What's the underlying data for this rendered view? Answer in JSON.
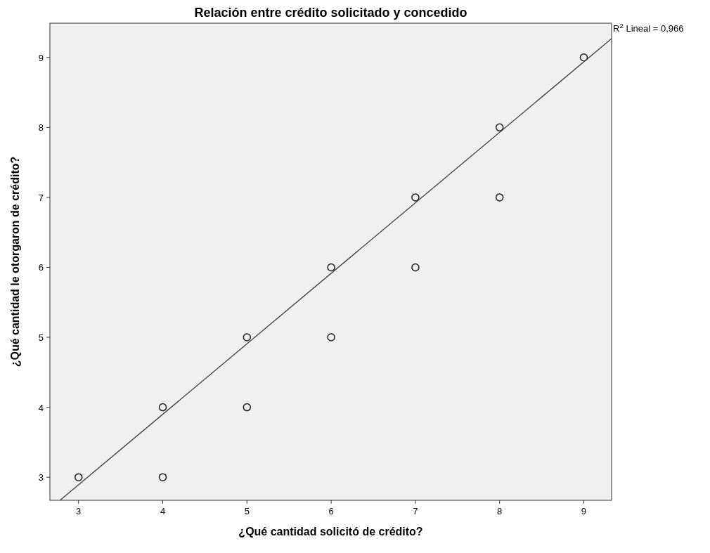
{
  "chart_data": {
    "type": "scatter",
    "title": "Relación entre crédito solicitado y concedido",
    "xlabel": "¿Qué cantidad solicitó de crédito?",
    "ylabel": "¿Qué cantidad le otorgaron de crédito?",
    "series": [
      {
        "color": "#1a1a1a",
        "marker": "circle",
        "x": [
          3,
          4,
          4,
          5,
          5,
          6,
          6,
          7,
          7,
          8,
          8,
          9
        ],
        "values": [
          3,
          4,
          3,
          5,
          4,
          6,
          5,
          7,
          6,
          8,
          7,
          9
        ]
      },
      {
        "type": "line",
        "marker": "none",
        "color": "#333333",
        "x": [
          2.78,
          9.33
        ],
        "values": [
          2.67,
          9.27
        ]
      }
    ],
    "xlim": [
      2.66,
      9.33
    ],
    "xticks": [
      3,
      4,
      5,
      6,
      7,
      8,
      9
    ],
    "ylim": [
      2.67,
      9.49
    ],
    "yticks": [
      3,
      4,
      5,
      6,
      7,
      8,
      9
    ],
    "grid": false,
    "line_style": "solid",
    "annotations": [
      "R$^{2}$ Lineal = 0,966"
    ]
  }
}
